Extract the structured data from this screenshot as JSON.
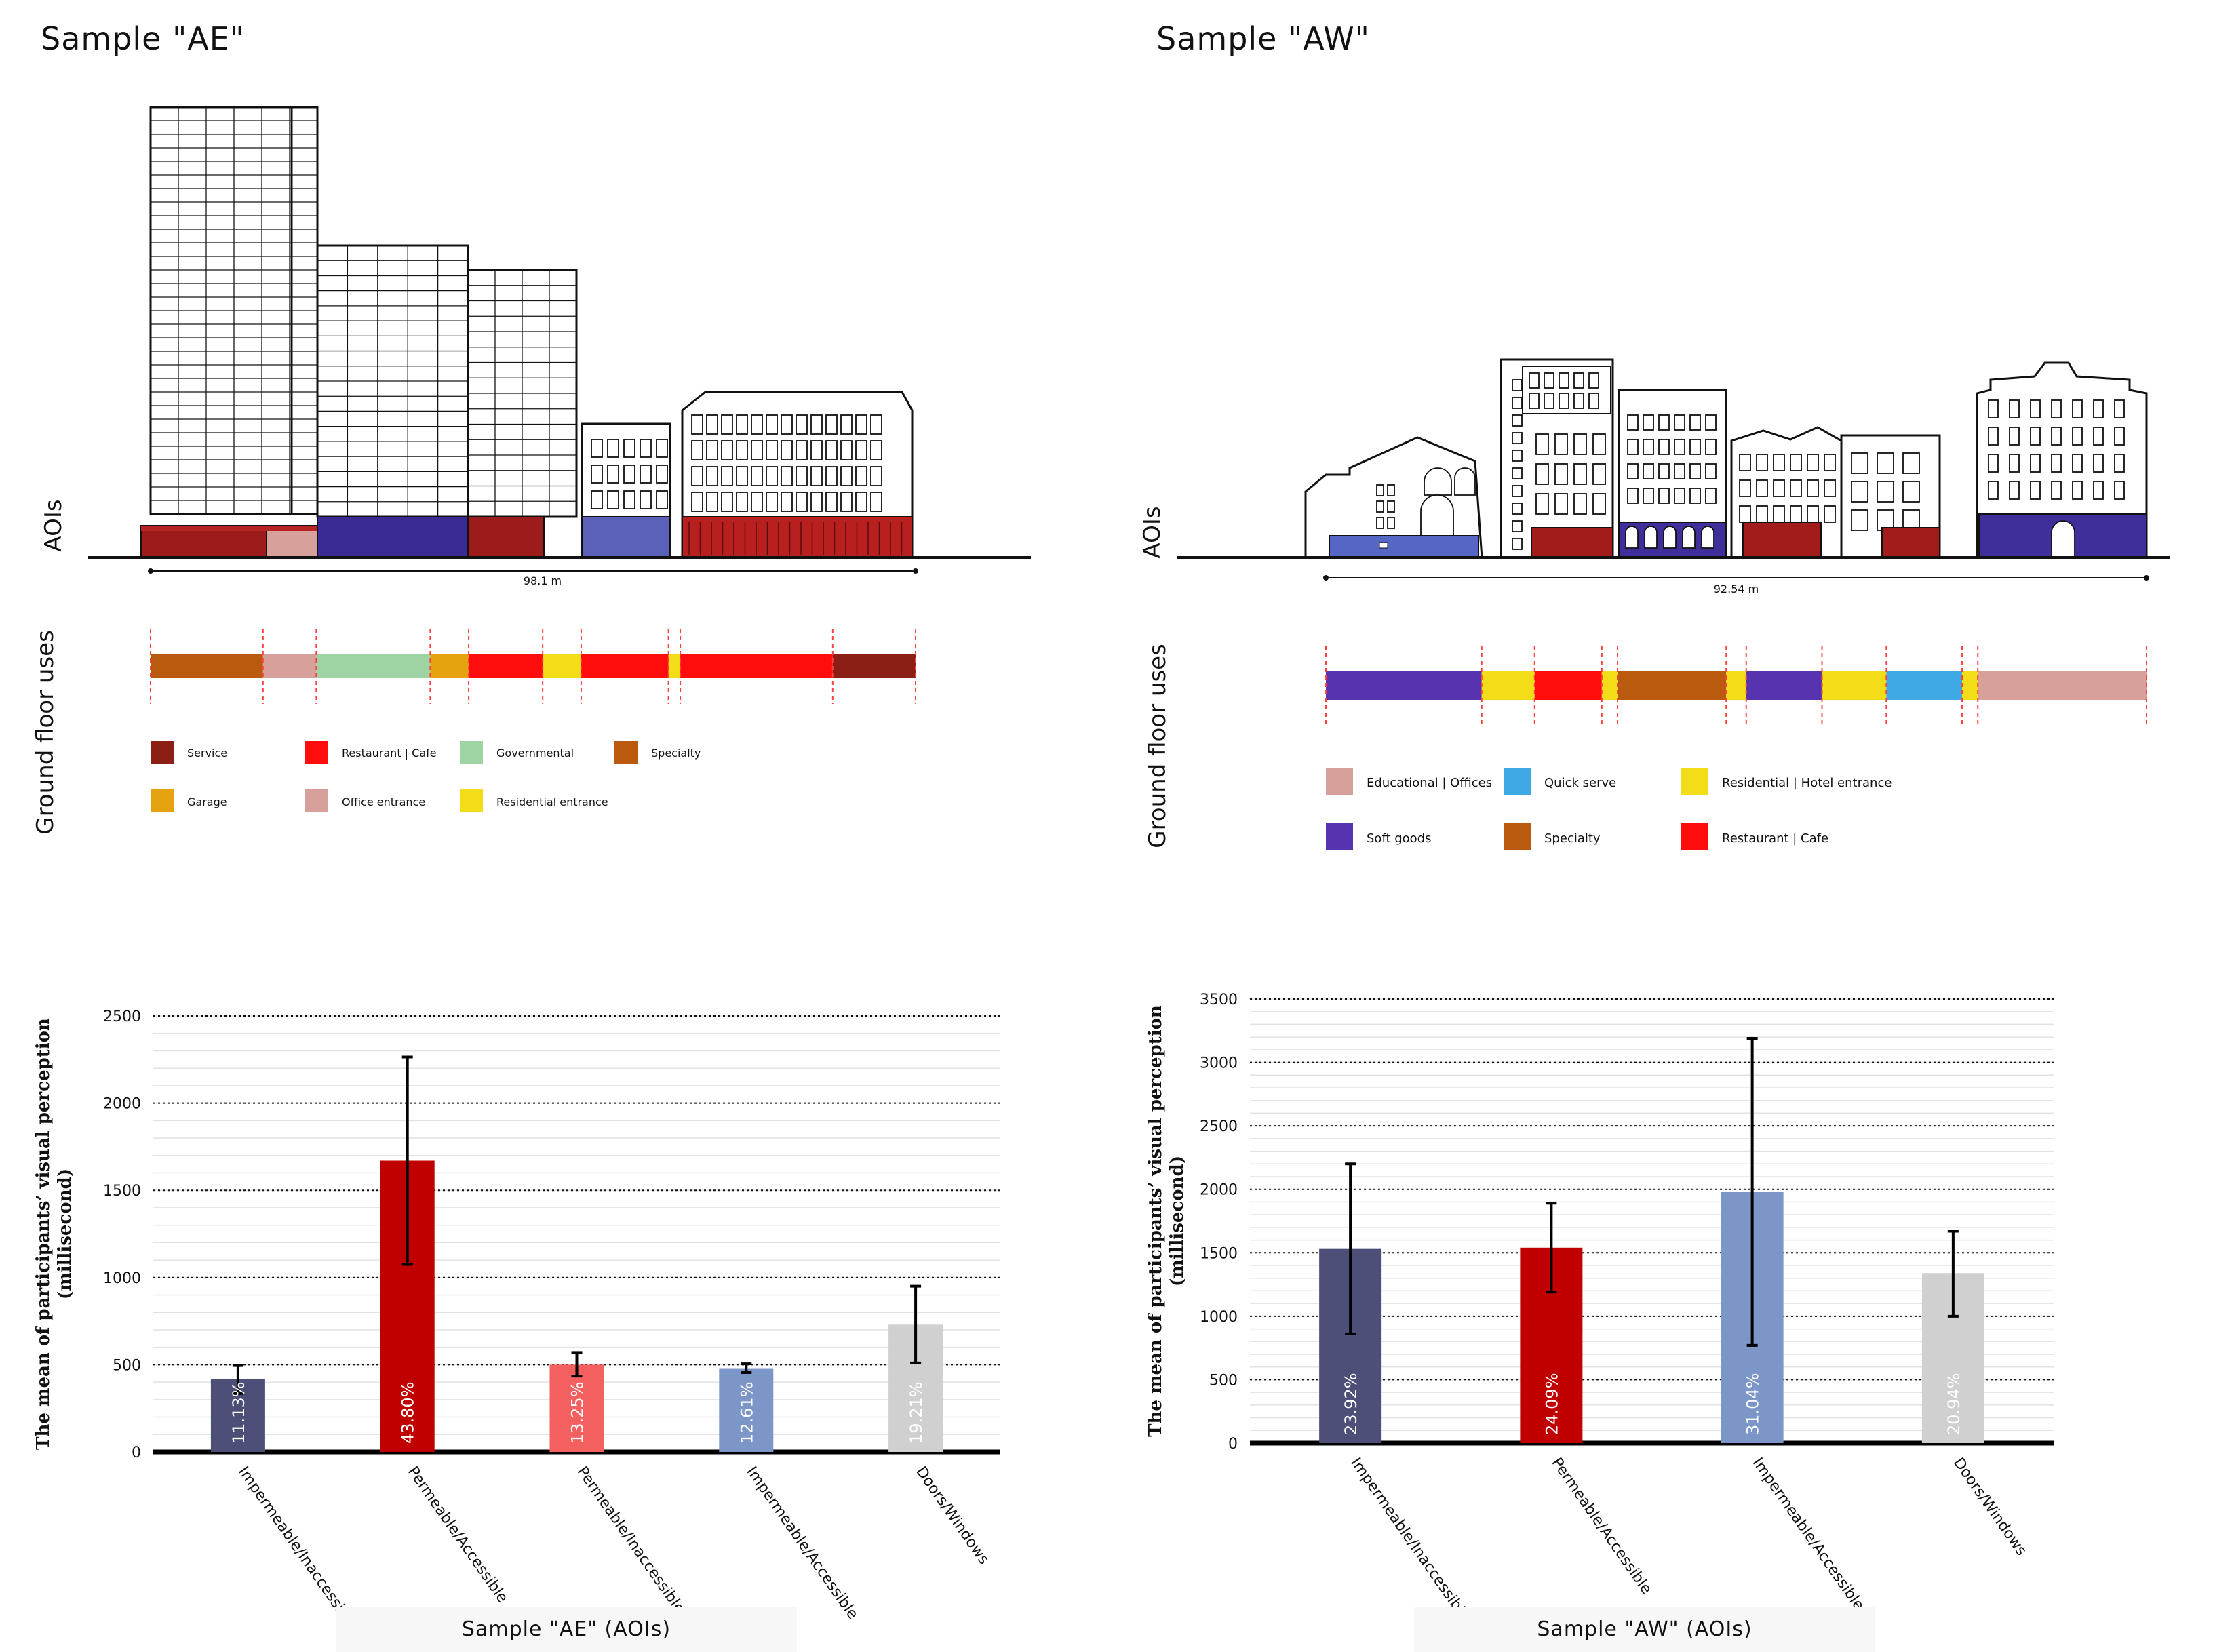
{
  "panels": [
    {
      "id": "ae",
      "title": "Sample \"AE\"",
      "aois_label": "AOIs",
      "ground_label": "Ground floor uses",
      "distance_label": "98.1 m",
      "uses_bar": [
        {
          "use": "Specialty",
          "weight": 76
        },
        {
          "use": "Office entrance",
          "weight": 36
        },
        {
          "use": "Governmental",
          "weight": 77
        },
        {
          "use": "Garage",
          "weight": 26
        },
        {
          "use": "Restaurant | Cafe",
          "weight": 50
        },
        {
          "use": "Residential entrance",
          "weight": 26
        },
        {
          "use": "Restaurant | Cafe",
          "weight": 59
        },
        {
          "use": "Residential entrance",
          "weight": 8
        },
        {
          "use": "Restaurant | Cafe",
          "weight": 103
        },
        {
          "use": "Service",
          "weight": 56
        }
      ],
      "legend": [
        {
          "label": "Service",
          "color": "#8b1e15"
        },
        {
          "label": "Restaurant | Cafe",
          "color": "#ff0d0d"
        },
        {
          "label": "Governmental",
          "color": "#9ed3a4"
        },
        {
          "label": "Specialty",
          "color": "#b95a0e"
        },
        {
          "label": "Garage",
          "color": "#e3a20e"
        },
        {
          "label": "Office entrance",
          "color": "#d8a09a"
        },
        {
          "label": "Residential entrance",
          "color": "#f3dc18"
        }
      ],
      "chart_data": {
        "type": "bar",
        "title": "",
        "ylabel": "The mean of participants' visual perception (millisecond)",
        "xlabel": "Sample \"AE\" (AOIs)",
        "ylim": [
          0,
          2500
        ],
        "yticks": [
          0,
          500,
          1000,
          1500,
          2000,
          2500
        ],
        "categories": [
          "Impermeable/Inaccessible",
          "Permeable/Accessible",
          "Permeable/Inaccessible",
          "Impermeable/Accessible",
          "Doors/Windows"
        ],
        "values": [
          420,
          1670,
          500,
          480,
          730
        ],
        "error_low": [
          335,
          1075,
          435,
          455,
          510
        ],
        "error_high": [
          495,
          2265,
          570,
          505,
          950
        ],
        "data_labels": [
          "11.13%",
          "43.80%",
          "13.25%",
          "12.61%",
          "19.21%"
        ],
        "colors": [
          "#4e4f78",
          "#c00000",
          "#f45f5f",
          "#7d96c8",
          "#d0d0d0"
        ]
      }
    },
    {
      "id": "aw",
      "title": "Sample \"AW\"",
      "aois_label": "AOIs",
      "ground_label": "Ground floor uses",
      "distance_label": "92.54 m",
      "uses_bar": [
        {
          "use": "Soft goods",
          "weight": 109
        },
        {
          "use": "Residential | Hotel entrance",
          "weight": 37
        },
        {
          "use": "Restaurant | Cafe",
          "weight": 47
        },
        {
          "use": "Residential | Hotel entrance",
          "weight": 11
        },
        {
          "use": "Specialty",
          "weight": 76
        },
        {
          "use": "Residential | Hotel entrance",
          "weight": 14
        },
        {
          "use": "Soft goods",
          "weight": 53
        },
        {
          "use": "Residential | Hotel entrance",
          "weight": 45
        },
        {
          "use": "Quick serve",
          "weight": 53
        },
        {
          "use": "Residential | Hotel entrance",
          "weight": 11
        },
        {
          "use": "Educational | Offices",
          "weight": 118
        }
      ],
      "legend": [
        {
          "label": "Educational | Offices",
          "color": "#d8a09a"
        },
        {
          "label": "Quick serve",
          "color": "#3fa9e6"
        },
        {
          "label": "Residential | Hotel entrance",
          "color": "#f3dc18"
        },
        {
          "label": "Soft goods",
          "color": "#5733b0"
        },
        {
          "label": "Specialty",
          "color": "#b95a0e"
        },
        {
          "label": "Restaurant | Cafe",
          "color": "#ff0d0d"
        }
      ],
      "chart_data": {
        "type": "bar",
        "title": "",
        "ylabel": "The mean of participants' visual perception (millisecond)",
        "xlabel": "Sample \"AW\" (AOIs)",
        "ylim": [
          0,
          3500
        ],
        "yticks": [
          0,
          500,
          1000,
          1500,
          2000,
          2500,
          3000,
          3500
        ],
        "categories": [
          "Impermeable/Inaccessible",
          "Permeable/Accessible",
          "Impermeable/Accessible",
          "Doors/Windows"
        ],
        "values": [
          1530,
          1540,
          1980,
          1340
        ],
        "error_low": [
          860,
          1190,
          770,
          1000
        ],
        "error_high": [
          2200,
          1890,
          3190,
          1670
        ],
        "data_labels": [
          "23.92%",
          "24.09%",
          "31.04%",
          "20.94%"
        ],
        "colors": [
          "#4e4f78",
          "#c00000",
          "#7d96c8",
          "#d0d0d0"
        ]
      }
    }
  ]
}
